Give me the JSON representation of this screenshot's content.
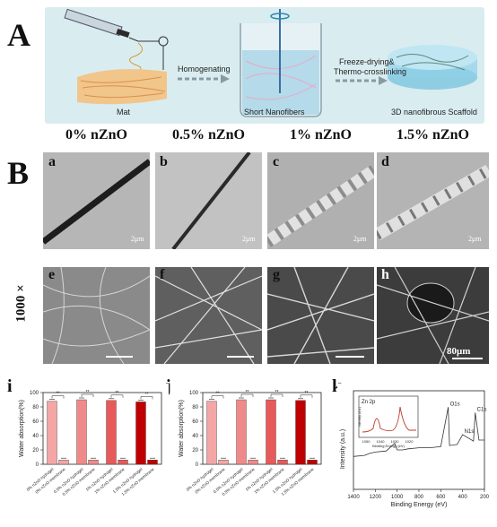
{
  "panel_a": {
    "letter": "A",
    "labels": {
      "mat": "Mat",
      "homogenating": "Homogenating",
      "short_nanofibers": "Short Nanofibers",
      "freeze_drying_1": "Freeze-drying&",
      "freeze_drying_2": "Thermo-crosslinking",
      "scaffold": "3D nanofibrous Scaffold"
    }
  },
  "panel_b": {
    "letter": "B",
    "columns": [
      "0% nZnO",
      "0.5% nZnO",
      "1% nZnO",
      "1.5% nZnO"
    ],
    "row_label": "1000 ×",
    "tem_letters": [
      "a",
      "b",
      "c",
      "d"
    ],
    "sem_letters": [
      "e",
      "f",
      "g",
      "h"
    ],
    "tem_scale": "2μm",
    "sem_scale": "80μm"
  },
  "chart_i": {
    "letter": "i",
    "chart_data": {
      "type": "bar",
      "ylabel": "Water absorption(%)",
      "ylim": [
        0,
        100
      ],
      "yticks": [
        0,
        20,
        40,
        60,
        80,
        100
      ],
      "categories": [
        "0% nZnO hydrogel",
        "0% nZnO membrane",
        "0.5% nZnO hydrogel",
        "0.5% nZnO membrane",
        "1% nZnO hydrogel",
        "1% nZnO membrane",
        "1.5% nZnO hydrogel",
        "1.5% nZnO membrane"
      ],
      "values": [
        88,
        6,
        90,
        6,
        89,
        6,
        87,
        6
      ],
      "significance": [
        "**",
        "**",
        "**",
        "**"
      ]
    }
  },
  "chart_j": {
    "letter": "j",
    "chart_data": {
      "type": "bar",
      "ylabel": "Water absorption(%)",
      "ylim": [
        0,
        100
      ],
      "yticks": [
        0,
        20,
        40,
        60,
        80,
        100
      ],
      "categories": [
        "0% nZnO hydrogel",
        "0% nZnO membrane",
        "0.5% nZnO hydrogel",
        "0.5% nZnO membrane",
        "1% nZnO hydrogel",
        "1% nZnO membrane",
        "1.5% nZnO hydrogel",
        "1.5% nZnO membrane"
      ],
      "values": [
        88,
        6,
        90,
        6,
        90,
        6,
        89,
        6
      ],
      "significance": [
        "**",
        "**",
        "**",
        "**"
      ]
    }
  },
  "chart_k": {
    "letter": "k",
    "chart_data": {
      "type": "line",
      "xlabel": "Binding Energy (eV)",
      "ylabel": "Intensity (a.u.)",
      "xlim": [
        1400,
        200
      ],
      "xticks": [
        1400,
        1200,
        1000,
        800,
        600,
        400,
        200
      ],
      "x": [
        1400,
        1300,
        1250,
        1200,
        1100,
        1022,
        1000,
        950,
        900,
        800,
        700,
        600,
        532,
        520,
        450,
        400,
        300,
        285,
        250,
        200
      ],
      "y": [
        30,
        31,
        33,
        34,
        35,
        42,
        36,
        36,
        37,
        38,
        38,
        39,
        75,
        40,
        41,
        50,
        44,
        70,
        45,
        45
      ],
      "peak_labels": [
        "O1s",
        "N1s",
        "C1s"
      ],
      "inset": {
        "title": "Zn 2p",
        "xlabel": "Binding Energy (eV)",
        "ylabel": "Intensity (a.u.)",
        "xticks": [
          1050,
          1040,
          1030,
          1020
        ]
      }
    }
  },
  "colors": {
    "bar_light": "#f4a6a6",
    "bar_mid1": "#f08a8a",
    "bar_mid2": "#e85a5a",
    "bar_dark": "#c00000",
    "inset_red": "#c0392b"
  }
}
